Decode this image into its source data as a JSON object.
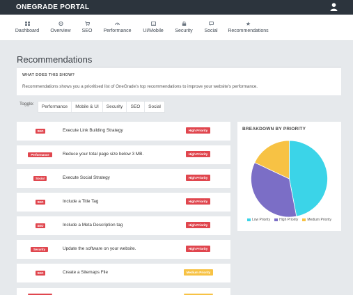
{
  "app": {
    "title": "ONEGRADE PORTAL"
  },
  "nav": [
    {
      "label": "Dashboard",
      "icon": "dashboard-icon"
    },
    {
      "label": "Overview",
      "icon": "overview-icon"
    },
    {
      "label": "SEO",
      "icon": "cart-icon"
    },
    {
      "label": "Performance",
      "icon": "gauge-icon"
    },
    {
      "label": "UI/Mobile",
      "icon": "mobile-icon"
    },
    {
      "label": "Security",
      "icon": "lock-icon"
    },
    {
      "label": "Social",
      "icon": "social-icon"
    },
    {
      "label": "Recommendations",
      "icon": "star-icon"
    }
  ],
  "page": {
    "title": "Recommendations"
  },
  "info": {
    "heading": "WHAT DOES THIS SHOW?",
    "text": "Recommendations shows you a prioritised list of OneGrade's top recommendations to improve your website's performance."
  },
  "toggle": {
    "label": "Toggle:",
    "options": [
      "Performance",
      "Mobile & UI",
      "Security",
      "SEO",
      "Social"
    ]
  },
  "recommendations": [
    {
      "category": "SEO",
      "text": "Execute Link Building Strategy",
      "priority": "High Priority",
      "level": "high"
    },
    {
      "category": "Performance",
      "text": "Reduce your total page size below 3 MB.",
      "priority": "High Priority",
      "level": "high"
    },
    {
      "category": "Social",
      "text": "Execute Social Strategy",
      "priority": "High Priority",
      "level": "high"
    },
    {
      "category": "SEO",
      "text": "Include a Title Tag",
      "priority": "High Priority",
      "level": "high"
    },
    {
      "category": "SEO",
      "text": "Include a Meta Description tag",
      "priority": "High Priority",
      "level": "high"
    },
    {
      "category": "Security",
      "text": "Update the software on your website.",
      "priority": "High Priority",
      "level": "high"
    },
    {
      "category": "SEO",
      "text": "Create a Sitemaps File",
      "priority": "Medium Priority",
      "level": "medium"
    }
  ],
  "colors": {
    "brand_bar": "#2c343d",
    "high": "#e0464e",
    "medium": "#f7c244",
    "pie_low": "#3bd4e8",
    "pie_high": "#7b6ec6",
    "pie_medium": "#f7c244"
  },
  "chart_data": {
    "type": "pie",
    "title": "BREAKDOWN BY PRIORITY",
    "slices": [
      {
        "name": "Low Priority",
        "value": 47,
        "color": "#3bd4e8"
      },
      {
        "name": "High Priority",
        "value": 35,
        "color": "#7b6ec6"
      },
      {
        "name": "Medium Priority",
        "value": 18,
        "color": "#f7c244"
      }
    ],
    "legend_position": "bottom"
  }
}
